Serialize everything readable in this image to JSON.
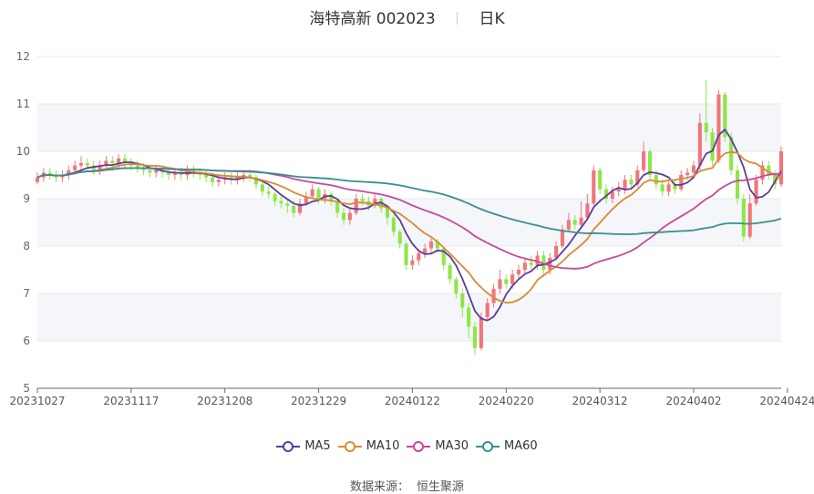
{
  "header": {
    "title": "海特高新 002023",
    "period": "日K"
  },
  "legend": [
    {
      "name": "MA5",
      "color": "#5b3c9a"
    },
    {
      "name": "MA10",
      "color": "#d98a33"
    },
    {
      "name": "MA30",
      "color": "#c9479b"
    },
    {
      "name": "MA60",
      "color": "#3a8f8f"
    }
  ],
  "footer": {
    "source_label": "数据来源：",
    "source": "恒生聚源"
  },
  "colors": {
    "up": "#f2757a",
    "down": "#8ee64a",
    "grid_band": "#f4f6fa"
  },
  "chart_data": {
    "type": "candlestick",
    "ylim": [
      5,
      12
    ],
    "yticks": [
      5,
      6,
      7,
      8,
      9,
      10,
      11,
      12
    ],
    "xtick_labels": [
      "20231027",
      "20231117",
      "20231208",
      "20231229",
      "20240122",
      "20240220",
      "20240312",
      "20240402",
      "20240424"
    ],
    "xtick_index": [
      0,
      15,
      30,
      45,
      60,
      75,
      90,
      105,
      120
    ],
    "ohlc": [
      [
        9.35,
        9.45,
        9.3,
        9.55
      ],
      [
        9.45,
        9.55,
        9.35,
        9.65
      ],
      [
        9.55,
        9.5,
        9.4,
        9.65
      ],
      [
        9.5,
        9.45,
        9.35,
        9.6
      ],
      [
        9.45,
        9.5,
        9.35,
        9.6
      ],
      [
        9.5,
        9.6,
        9.4,
        9.7
      ],
      [
        9.6,
        9.7,
        9.5,
        9.8
      ],
      [
        9.7,
        9.75,
        9.6,
        9.9
      ],
      [
        9.75,
        9.7,
        9.6,
        9.85
      ],
      [
        9.7,
        9.6,
        9.5,
        9.8
      ],
      [
        9.6,
        9.7,
        9.5,
        9.8
      ],
      [
        9.7,
        9.8,
        9.6,
        9.9
      ],
      [
        9.8,
        9.75,
        9.65,
        9.9
      ],
      [
        9.75,
        9.85,
        9.65,
        9.95
      ],
      [
        9.85,
        9.75,
        9.65,
        9.95
      ],
      [
        9.75,
        9.7,
        9.6,
        9.85
      ],
      [
        9.7,
        9.65,
        9.55,
        9.8
      ],
      [
        9.65,
        9.6,
        9.5,
        9.75
      ],
      [
        9.6,
        9.55,
        9.45,
        9.7
      ],
      [
        9.55,
        9.6,
        9.45,
        9.7
      ],
      [
        9.6,
        9.55,
        9.45,
        9.7
      ],
      [
        9.55,
        9.5,
        9.4,
        9.65
      ],
      [
        9.5,
        9.55,
        9.4,
        9.65
      ],
      [
        9.55,
        9.5,
        9.4,
        9.65
      ],
      [
        9.5,
        9.6,
        9.4,
        9.7
      ],
      [
        9.6,
        9.55,
        9.45,
        9.7
      ],
      [
        9.55,
        9.5,
        9.4,
        9.65
      ],
      [
        9.5,
        9.45,
        9.35,
        9.6
      ],
      [
        9.45,
        9.35,
        9.25,
        9.55
      ],
      [
        9.35,
        9.4,
        9.25,
        9.5
      ],
      [
        9.4,
        9.45,
        9.3,
        9.55
      ],
      [
        9.45,
        9.4,
        9.3,
        9.55
      ],
      [
        9.4,
        9.45,
        9.3,
        9.55
      ],
      [
        9.45,
        9.5,
        9.35,
        9.6
      ],
      [
        9.5,
        9.45,
        9.35,
        9.6
      ],
      [
        9.45,
        9.3,
        9.2,
        9.5
      ],
      [
        9.3,
        9.15,
        9.05,
        9.35
      ],
      [
        9.15,
        9.1,
        9.0,
        9.25
      ],
      [
        9.1,
        8.95,
        8.85,
        9.15
      ],
      [
        8.95,
        8.9,
        8.8,
        9.05
      ],
      [
        8.9,
        8.85,
        8.7,
        9.0
      ],
      [
        8.85,
        8.7,
        8.6,
        8.95
      ],
      [
        8.7,
        8.9,
        8.65,
        9.0
      ],
      [
        8.9,
        9.05,
        8.85,
        9.15
      ],
      [
        9.05,
        9.2,
        9.0,
        9.3
      ],
      [
        9.2,
        9.0,
        8.9,
        9.25
      ],
      [
        9.0,
        9.1,
        8.9,
        9.2
      ],
      [
        9.1,
        8.95,
        8.85,
        9.15
      ],
      [
        8.95,
        8.7,
        8.6,
        9.0
      ],
      [
        8.7,
        8.55,
        8.45,
        8.8
      ],
      [
        8.55,
        8.7,
        8.45,
        8.8
      ],
      [
        8.7,
        9.0,
        8.65,
        9.1
      ],
      [
        9.0,
        8.95,
        8.85,
        9.1
      ],
      [
        8.95,
        8.85,
        8.75,
        9.05
      ],
      [
        8.85,
        9.0,
        8.8,
        9.1
      ],
      [
        9.0,
        8.8,
        8.7,
        9.05
      ],
      [
        8.8,
        8.6,
        8.45,
        8.85
      ],
      [
        8.6,
        8.3,
        8.2,
        8.65
      ],
      [
        8.3,
        8.05,
        7.95,
        8.35
      ],
      [
        8.05,
        7.6,
        7.5,
        8.1
      ],
      [
        7.6,
        7.7,
        7.5,
        7.8
      ],
      [
        7.7,
        7.85,
        7.6,
        7.95
      ],
      [
        7.85,
        7.95,
        7.75,
        8.05
      ],
      [
        7.95,
        8.1,
        7.85,
        8.2
      ],
      [
        8.1,
        7.95,
        7.85,
        8.15
      ],
      [
        7.95,
        7.6,
        7.5,
        8.0
      ],
      [
        7.6,
        7.3,
        7.2,
        7.65
      ],
      [
        7.3,
        7.0,
        6.9,
        7.35
      ],
      [
        7.0,
        6.7,
        6.5,
        7.1
      ],
      [
        6.7,
        6.3,
        6.05,
        6.8
      ],
      [
        6.3,
        5.85,
        5.7,
        6.4
      ],
      [
        5.85,
        6.5,
        5.8,
        6.6
      ],
      [
        6.5,
        6.8,
        6.45,
        6.9
      ],
      [
        6.8,
        7.1,
        6.7,
        7.2
      ],
      [
        7.1,
        7.3,
        7.0,
        7.5
      ],
      [
        7.3,
        7.2,
        7.1,
        7.4
      ],
      [
        7.2,
        7.4,
        7.1,
        7.5
      ],
      [
        7.4,
        7.5,
        7.3,
        7.6
      ],
      [
        7.5,
        7.65,
        7.4,
        7.75
      ],
      [
        7.65,
        7.6,
        7.5,
        7.8
      ],
      [
        7.6,
        7.8,
        7.5,
        7.9
      ],
      [
        7.8,
        7.5,
        7.35,
        7.9
      ],
      [
        7.5,
        7.75,
        7.4,
        7.85
      ],
      [
        7.75,
        8.0,
        7.7,
        8.1
      ],
      [
        8.0,
        8.35,
        7.95,
        8.45
      ],
      [
        8.35,
        8.55,
        8.3,
        8.7
      ],
      [
        8.55,
        8.45,
        8.35,
        8.65
      ],
      [
        8.45,
        8.6,
        8.4,
        8.95
      ],
      [
        8.6,
        8.9,
        8.55,
        9.1
      ],
      [
        8.9,
        9.6,
        8.85,
        9.7
      ],
      [
        9.6,
        9.2,
        9.1,
        9.65
      ],
      [
        9.2,
        9.0,
        8.9,
        9.3
      ],
      [
        9.0,
        9.15,
        8.9,
        9.25
      ],
      [
        9.15,
        9.2,
        9.05,
        9.35
      ],
      [
        9.2,
        9.4,
        9.1,
        9.5
      ],
      [
        9.4,
        9.3,
        9.2,
        9.5
      ],
      [
        9.3,
        9.6,
        9.25,
        9.7
      ],
      [
        9.6,
        10.0,
        9.55,
        10.2
      ],
      [
        10.0,
        9.5,
        9.4,
        10.05
      ],
      [
        9.5,
        9.3,
        9.2,
        9.6
      ],
      [
        9.3,
        9.15,
        9.05,
        9.4
      ],
      [
        9.15,
        9.3,
        9.05,
        9.4
      ],
      [
        9.3,
        9.2,
        9.1,
        9.4
      ],
      [
        9.2,
        9.5,
        9.15,
        9.6
      ],
      [
        9.5,
        9.55,
        9.4,
        9.65
      ],
      [
        9.55,
        9.7,
        9.45,
        9.8
      ],
      [
        9.7,
        10.6,
        9.6,
        10.8
      ],
      [
        10.6,
        10.4,
        10.2,
        11.5
      ],
      [
        10.4,
        9.8,
        9.7,
        10.5
      ],
      [
        9.8,
        11.2,
        9.75,
        11.3
      ],
      [
        11.2,
        10.3,
        10.2,
        11.25
      ],
      [
        10.3,
        9.6,
        9.5,
        10.4
      ],
      [
        9.6,
        9.0,
        8.9,
        9.7
      ],
      [
        9.0,
        8.2,
        8.1,
        9.1
      ],
      [
        8.2,
        8.9,
        8.15,
        9.1
      ],
      [
        8.9,
        9.4,
        8.85,
        9.5
      ],
      [
        9.4,
        9.7,
        9.3,
        9.8
      ],
      [
        9.7,
        9.5,
        9.4,
        9.8
      ],
      [
        9.5,
        9.3,
        9.2,
        9.6
      ],
      [
        9.3,
        10.0,
        9.25,
        10.1
      ]
    ],
    "series": [
      {
        "name": "MA5",
        "key": "ma5"
      },
      {
        "name": "MA10",
        "key": "ma10"
      },
      {
        "name": "MA30",
        "key": "ma30"
      },
      {
        "name": "MA60",
        "key": "ma60"
      }
    ]
  }
}
